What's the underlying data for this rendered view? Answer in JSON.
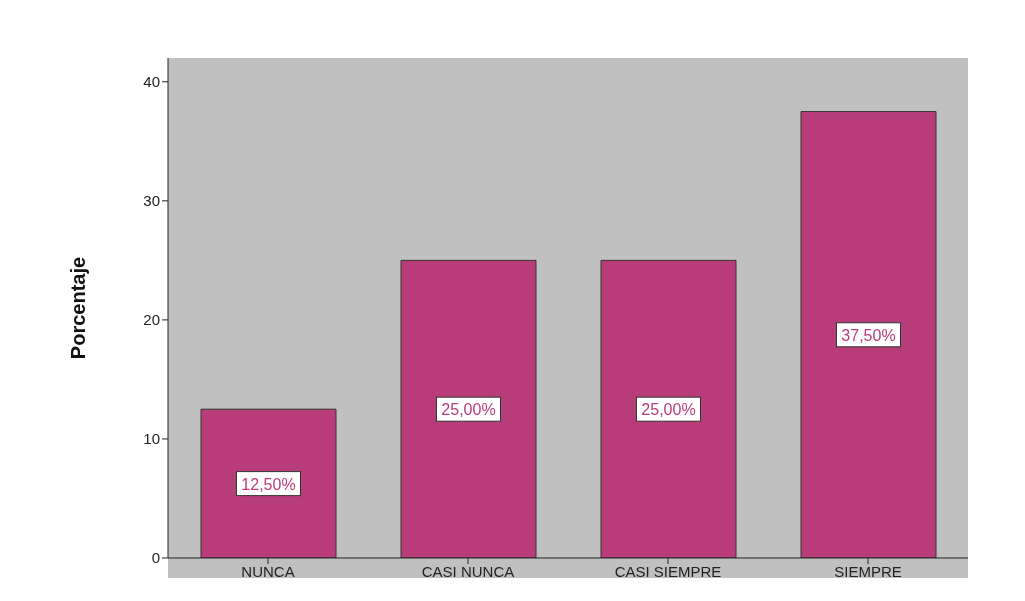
{
  "chart_data": {
    "type": "bar",
    "ylabel": "Porcentaje",
    "categories": [
      "NUNCA",
      "CASI NUNCA",
      "CASI SIEMPRE",
      "SIEMPRE"
    ],
    "values": [
      12.5,
      25,
      25,
      37.5
    ],
    "value_labels": [
      "12,50%",
      "25,00%",
      "25,00%",
      "37,50%"
    ],
    "color": "#b93c7a",
    "ylim": [
      0,
      42
    ],
    "yticks": [
      0,
      10,
      20,
      30,
      40
    ],
    "grid": false,
    "legend": false
  }
}
